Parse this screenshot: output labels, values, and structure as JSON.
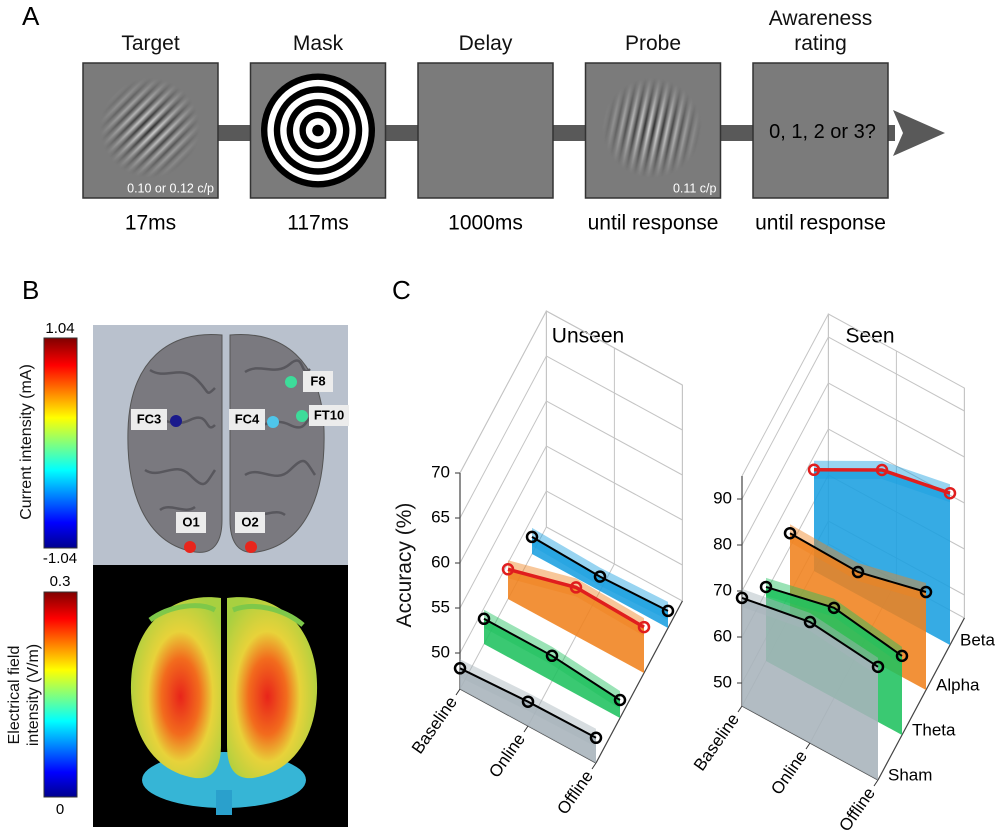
{
  "panel_a": {
    "label": "A",
    "steps": [
      {
        "title": "Target",
        "duration": "17ms",
        "note": "0.10 or 0.12 c/p"
      },
      {
        "title": "Mask",
        "duration": "117ms"
      },
      {
        "title": "Delay",
        "duration": "1000ms"
      },
      {
        "title": "Probe",
        "duration": "until response",
        "note": "0.11 c/p"
      },
      {
        "title": "Awareness rating",
        "duration": "until response",
        "prompt": "0, 1, 2 or 3?"
      }
    ]
  },
  "panel_b": {
    "label": "B",
    "current_colorbar": {
      "label": "Current intensity (mA)",
      "max": 1.04,
      "min": -1.04
    },
    "field_colorbar": {
      "label": "Electrical field intensity (V/m)",
      "max": 0.3,
      "min": 0
    },
    "electrodes": [
      "FC3",
      "FC4",
      "F8",
      "FT10",
      "O1",
      "O2"
    ]
  },
  "panel_c": {
    "label": "C",
    "y_label": "Accuracy (%)",
    "charts": [
      {
        "type": "line3d",
        "title": "Unseen",
        "categories": [
          "Baseline",
          "Online",
          "Offline"
        ],
        "ylim": [
          46,
          70
        ],
        "yticks": [
          50,
          55,
          60,
          65,
          70
        ],
        "series": [
          {
            "color": "#a7b3bb",
            "line_color": "#000000",
            "values": [
              48.3,
              48.7,
              48.8
            ]
          },
          {
            "color": "#1fc25e",
            "line_color": "#000000",
            "values": [
              48.8,
              48.8,
              48.0
            ]
          },
          {
            "color": "#f0821e",
            "line_color": "#e01e1e",
            "values": [
              49.3,
              51.4,
              51.1
            ]
          },
          {
            "color": "#1a9fe0",
            "line_color": "#000000",
            "values": [
              47.9,
              47.6,
              47.9
            ]
          }
        ]
      },
      {
        "type": "line3d",
        "title": "Seen",
        "categories": [
          "Baseline",
          "Online",
          "Offline"
        ],
        "ylim": [
          45,
          95
        ],
        "yticks": [
          50,
          60,
          70,
          80,
          90
        ],
        "series": [
          {
            "name": "Sham",
            "color": "#a7b3bb",
            "line_color": "#000000",
            "values": [
              68.5,
              71.3,
              69.6
            ]
          },
          {
            "name": "Theta",
            "color": "#1fc25e",
            "line_color": "#000000",
            "values": [
              61.1,
              64.6,
              62.2
            ]
          },
          {
            "name": "Alpha",
            "color": "#f0821e",
            "line_color": "#000000",
            "values": [
              63.0,
              62.6,
              66.3
            ]
          },
          {
            "name": "Beta",
            "color": "#1a9fe0",
            "line_color": "#e01e1e",
            "values": [
              67.0,
              75.0,
              78.0
            ]
          }
        ]
      }
    ]
  }
}
